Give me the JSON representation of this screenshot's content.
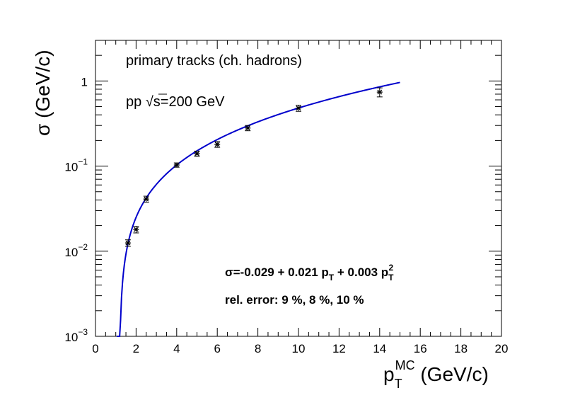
{
  "chart_data": {
    "type": "scatter",
    "xlabel": "p_T^MC (GeV/c)",
    "xlabel_parts": {
      "p": "p",
      "sub": "T",
      "sup": "MC",
      "unit": " (GeV/c)"
    },
    "ylabel": "σ (GeV/c)",
    "xlim": [
      0,
      20
    ],
    "ylim": [
      0.001,
      3
    ],
    "yscale": "log",
    "x_ticks": [
      0,
      2,
      4,
      6,
      8,
      10,
      12,
      14,
      16,
      18,
      20
    ],
    "y_ticks": [
      {
        "value": 0.001,
        "label": "10",
        "exp": "−3"
      },
      {
        "value": 0.01,
        "label": "10",
        "exp": "−2"
      },
      {
        "value": 0.1,
        "label": "10",
        "exp": "−1"
      },
      {
        "value": 1,
        "label": "1",
        "exp": ""
      }
    ],
    "grid": false,
    "annotations": {
      "line1": "primary tracks (ch. hadrons)",
      "line2_prefix": "pp ",
      "line2_sqrt": "√",
      "line2_s": "s",
      "line2_suffix": "=200 GeV",
      "formula": {
        "start": "σ=-0.029 + 0.021 p",
        "sub1": "T",
        "mid": " + 0.003 p",
        "sub2": "T",
        "sup2": "2"
      },
      "rel_error": "rel. error: 9 %, 8 %, 10 %"
    },
    "points": [
      {
        "x": 1.6,
        "y": 0.0125,
        "err": 0.0011
      },
      {
        "x": 2.0,
        "y": 0.018,
        "err": 0.0016
      },
      {
        "x": 2.5,
        "y": 0.041,
        "err": 0.0033
      },
      {
        "x": 4.0,
        "y": 0.103,
        "err": 0.006
      },
      {
        "x": 5.0,
        "y": 0.14,
        "err": 0.01
      },
      {
        "x": 6.0,
        "y": 0.18,
        "err": 0.014
      },
      {
        "x": 7.5,
        "y": 0.28,
        "err": 0.02
      },
      {
        "x": 10.0,
        "y": 0.48,
        "err": 0.04
      },
      {
        "x": 14.0,
        "y": 0.74,
        "err": 0.09
      }
    ],
    "fit": {
      "c0": -0.029,
      "c1": 0.021,
      "c2": 0.003,
      "x_range": [
        1.05,
        15
      ]
    },
    "colors": {
      "fit": "#0000cc",
      "points": "#000000",
      "axis": "#000000"
    }
  }
}
